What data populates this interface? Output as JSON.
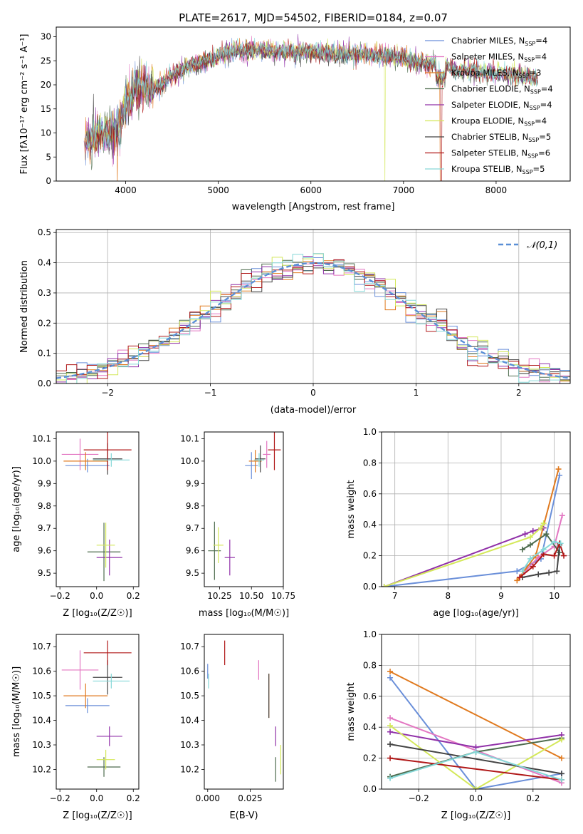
{
  "figure": {
    "title": "PLATE=2617, MJD=54502, FIBERID=0184, z=0.07"
  },
  "colors": {
    "Chabrier MILES": "#6a8fd9",
    "Salpeter MILES": "#e377c2",
    "Kroupa MILES": "#e07a1f",
    "Chabrier ELODIE": "#4d6b4d",
    "Salpeter ELODIE": "#9030a8",
    "Kroupa ELODIE": "#d4e85a",
    "Chabrier STELIB": "#444444",
    "Salpeter STELIB": "#b01818",
    "Kroupa STELIB": "#86d8d8",
    "normal": "#5a8fd6",
    "grid": "#b0b0b0"
  },
  "chart_data": [
    {
      "id": "spectrum",
      "type": "line",
      "xlabel": "wavelength [Angstrom, rest frame]",
      "ylabel": "Flux [fλ10⁻¹⁷ erg cm⁻² s⁻¹ A⁻¹]",
      "xlim": [
        3250,
        8800
      ],
      "ylim": [
        0,
        32
      ],
      "xticks": [
        4000,
        5000,
        6000,
        7000,
        8000
      ],
      "yticks": [
        0,
        5,
        10,
        15,
        20,
        25,
        30
      ],
      "grid": false,
      "legend_position": "top-right",
      "envelope": {
        "x": [
          3550,
          3700,
          3850,
          3950,
          4000,
          4100,
          4200,
          4300,
          4400,
          4500,
          4650,
          4800,
          5000,
          5200,
          5400,
          5600,
          5800,
          6000,
          6200,
          6400,
          6600,
          6800,
          7000,
          7200,
          7400,
          7600,
          7800,
          8000,
          8200,
          8400
        ],
        "y": [
          8.5,
          9.5,
          10,
          12,
          16,
          19,
          19.5,
          19,
          20.5,
          22,
          23.5,
          24.5,
          26,
          27,
          27.2,
          27,
          26.8,
          26.8,
          26.5,
          26.5,
          26.2,
          26,
          25.5,
          24.5,
          24,
          23,
          22.8,
          22.5,
          22,
          21.5
        ]
      },
      "legend": [
        {
          "label": "Chabrier MILES, N",
          "sub": "SSP",
          "val": "=4"
        },
        {
          "label": "Salpeter MILES, N",
          "sub": "SSP",
          "val": "=4"
        },
        {
          "label": "Kroupa MILES, N",
          "sub": "SSP",
          "val": "=3"
        },
        {
          "label": "Chabrier ELODIE, N",
          "sub": "SSP",
          "val": "=4"
        },
        {
          "label": "Salpeter ELODIE, N",
          "sub": "SSP",
          "val": "=4"
        },
        {
          "label": "Kroupa ELODIE, N",
          "sub": "SSP",
          "val": "=4"
        },
        {
          "label": "Chabrier STELIB, N",
          "sub": "SSP",
          "val": "=5"
        },
        {
          "label": "Salpeter STELIB, N",
          "sub": "SSP",
          "val": "=6"
        },
        {
          "label": "Kroupa STELIB, N",
          "sub": "SSP",
          "val": "=5"
        }
      ],
      "series_order": [
        "Chabrier MILES",
        "Salpeter MILES",
        "Kroupa MILES",
        "Chabrier ELODIE",
        "Salpeter ELODIE",
        "Kroupa ELODIE",
        "Chabrier STELIB",
        "Salpeter STELIB",
        "Kroupa STELIB"
      ]
    },
    {
      "id": "residuals",
      "type": "line",
      "xlabel": "(data-model)/error",
      "ylabel": "Normed distribution",
      "xlim": [
        -2.5,
        2.5
      ],
      "ylim": [
        0,
        0.51
      ],
      "xticks": [
        -2,
        -1,
        0,
        1,
        2
      ],
      "yticks": [
        0.0,
        0.1,
        0.2,
        0.3,
        0.4,
        0.5
      ],
      "grid": true,
      "legend_position": "top-right",
      "legend": [
        "𝒩(0,1)"
      ],
      "bin_width": 0.1
    },
    {
      "id": "age-vs-z",
      "type": "scatter",
      "xlabel": "Z [log₁₀(Z/Z☉)]",
      "ylabel": "age  [log₁₀(age/yr)]",
      "xlim": [
        -0.22,
        0.23
      ],
      "ylim": [
        9.44,
        10.13
      ],
      "xticks": [
        -0.2,
        0.0,
        0.2
      ],
      "yticks": [
        9.5,
        9.6,
        9.7,
        9.8,
        9.9,
        10.0,
        10.1
      ],
      "grid": false,
      "points": [
        {
          "s": "Chabrier MILES",
          "x": -0.05,
          "y": 9.98,
          "xerr": 0.12,
          "yerr": 0.03
        },
        {
          "s": "Salpeter MILES",
          "x": -0.09,
          "y": 10.03,
          "xerr": 0.1,
          "yerr": 0.07
        },
        {
          "s": "Kroupa MILES",
          "x": -0.06,
          "y": 10.0,
          "xerr": 0.12,
          "yerr": 0.04
        },
        {
          "s": "Chabrier ELODIE",
          "x": 0.04,
          "y": 9.595,
          "xerr": 0.09,
          "yerr": 0.13
        },
        {
          "s": "Salpeter ELODIE",
          "x": 0.07,
          "y": 9.57,
          "xerr": 0.07,
          "yerr": 0.08
        },
        {
          "s": "Kroupa ELODIE",
          "x": 0.05,
          "y": 9.625,
          "xerr": 0.05,
          "yerr": 0.1
        },
        {
          "s": "Chabrier STELIB",
          "x": 0.06,
          "y": 10.01,
          "xerr": 0.08,
          "yerr": 0.07
        },
        {
          "s": "Salpeter STELIB",
          "x": 0.06,
          "y": 10.05,
          "xerr": 0.13,
          "yerr": 0.09
        },
        {
          "s": "Kroupa STELIB",
          "x": 0.08,
          "y": 10.005,
          "xerr": 0.1,
          "yerr": 0.03
        }
      ]
    },
    {
      "id": "age-vs-mass",
      "type": "scatter",
      "xlabel": "mass [log₁₀(M/M☉)]",
      "ylabel": "",
      "xlim": [
        10.13,
        10.75
      ],
      "ylim": [
        9.44,
        10.13
      ],
      "xticks": [
        10.25,
        10.5,
        10.75
      ],
      "xticklabels": [
        "10.25",
        "10.50",
        "10.75"
      ],
      "yticks": [
        9.5,
        9.6,
        9.7,
        9.8,
        9.9,
        10.0,
        10.1
      ],
      "grid": false,
      "points": [
        {
          "s": "Chabrier MILES",
          "x": 10.5,
          "y": 9.98,
          "xerr": 0.05,
          "yerr": 0.06
        },
        {
          "s": "Salpeter MILES",
          "x": 10.62,
          "y": 10.03,
          "xerr": 0.03,
          "yerr": 0.06
        },
        {
          "s": "Kroupa MILES",
          "x": 10.53,
          "y": 10.0,
          "xerr": 0.05,
          "yerr": 0.05
        },
        {
          "s": "Chabrier ELODIE",
          "x": 10.21,
          "y": 9.6,
          "xerr": 0.05,
          "yerr": 0.13
        },
        {
          "s": "Salpeter ELODIE",
          "x": 10.33,
          "y": 9.57,
          "xerr": 0.04,
          "yerr": 0.08
        },
        {
          "s": "Kroupa ELODIE",
          "x": 10.24,
          "y": 9.625,
          "xerr": 0.04,
          "yerr": 0.08
        },
        {
          "s": "Chabrier STELIB",
          "x": 10.57,
          "y": 10.01,
          "xerr": 0.04,
          "yerr": 0.06
        },
        {
          "s": "Salpeter STELIB",
          "x": 10.68,
          "y": 10.05,
          "xerr": 0.05,
          "yerr": 0.09
        },
        {
          "s": "Kroupa STELIB",
          "x": 10.56,
          "y": 10.005,
          "xerr": 0.04,
          "yerr": 0.03
        }
      ]
    },
    {
      "id": "weight-vs-age",
      "type": "line",
      "xlabel": "age  [log₁₀(age/yr)]",
      "ylabel": "mass weight",
      "xlim": [
        6.75,
        10.3
      ],
      "ylim": [
        0,
        1.0
      ],
      "xticks": [
        7,
        8,
        9,
        10
      ],
      "yticks": [
        0.0,
        0.2,
        0.4,
        0.6,
        0.8,
        1.0
      ],
      "grid": true,
      "series": [
        {
          "name": "Chabrier MILES",
          "x": [
            6.8,
            9.3,
            9.75,
            10.1
          ],
          "y": [
            0.0,
            0.1,
            0.18,
            0.72
          ]
        },
        {
          "name": "Salpeter MILES",
          "x": [
            9.4,
            9.7,
            10.0,
            10.15
          ],
          "y": [
            0.08,
            0.19,
            0.26,
            0.46
          ]
        },
        {
          "name": "Kroupa MILES",
          "x": [
            9.3,
            9.65,
            10.08
          ],
          "y": [
            0.04,
            0.2,
            0.76
          ]
        },
        {
          "name": "Chabrier ELODIE",
          "x": [
            9.4,
            9.55,
            9.85,
            10.1
          ],
          "y": [
            0.24,
            0.27,
            0.34,
            0.22
          ]
        },
        {
          "name": "Salpeter ELODIE",
          "x": [
            6.8,
            9.45,
            9.6,
            9.8
          ],
          "y": [
            0.0,
            0.34,
            0.36,
            0.38
          ]
        },
        {
          "name": "Kroupa ELODIE",
          "x": [
            6.8,
            9.55,
            9.75,
            9.8
          ],
          "y": [
            0.0,
            0.32,
            0.38,
            0.41
          ]
        },
        {
          "name": "Chabrier STELIB",
          "x": [
            9.4,
            9.7,
            9.9,
            10.05,
            10.1
          ],
          "y": [
            0.06,
            0.08,
            0.09,
            0.1,
            0.27
          ]
        },
        {
          "name": "Salpeter STELIB",
          "x": [
            9.35,
            9.6,
            9.8,
            10.0,
            10.1,
            10.18
          ],
          "y": [
            0.06,
            0.13,
            0.21,
            0.2,
            0.28,
            0.2
          ]
        },
        {
          "name": "Kroupa STELIB",
          "x": [
            9.4,
            9.55,
            9.8,
            10.0,
            10.12
          ],
          "y": [
            0.1,
            0.18,
            0.24,
            0.29,
            0.28
          ]
        }
      ]
    },
    {
      "id": "mass-vs-z",
      "type": "scatter",
      "xlabel": "Z [log₁₀(Z/Z☉)]",
      "ylabel": "mass [log₁₀(M/M☉)]",
      "xlim": [
        -0.22,
        0.23
      ],
      "ylim": [
        10.12,
        10.75
      ],
      "xticks": [
        -0.2,
        0.0,
        0.2
      ],
      "yticks": [
        10.2,
        10.3,
        10.4,
        10.5,
        10.6,
        10.7
      ],
      "grid": false,
      "points": [
        {
          "s": "Chabrier MILES",
          "x": -0.05,
          "y": 10.46,
          "xerr": 0.12,
          "yerr": 0.03
        },
        {
          "s": "Salpeter MILES",
          "x": -0.09,
          "y": 10.605,
          "xerr": 0.1,
          "yerr": 0.08
        },
        {
          "s": "Kroupa MILES",
          "x": -0.06,
          "y": 10.5,
          "xerr": 0.12,
          "yerr": 0.05
        },
        {
          "s": "Chabrier ELODIE",
          "x": 0.04,
          "y": 10.21,
          "xerr": 0.09,
          "yerr": 0.04
        },
        {
          "s": "Salpeter ELODIE",
          "x": 0.07,
          "y": 10.335,
          "xerr": 0.07,
          "yerr": 0.04
        },
        {
          "s": "Kroupa ELODIE",
          "x": 0.05,
          "y": 10.24,
          "xerr": 0.05,
          "yerr": 0.04
        },
        {
          "s": "Chabrier STELIB",
          "x": 0.06,
          "y": 10.575,
          "xerr": 0.08,
          "yerr": 0.07
        },
        {
          "s": "Salpeter STELIB",
          "x": 0.06,
          "y": 10.675,
          "xerr": 0.13,
          "yerr": 0.05
        },
        {
          "s": "Kroupa STELIB",
          "x": 0.08,
          "y": 10.56,
          "xerr": 0.1,
          "yerr": 0.03
        }
      ]
    },
    {
      "id": "mass-vs-ebv",
      "type": "scatter",
      "xlabel": "E(B-V)",
      "ylabel": "",
      "xlim": [
        -0.002,
        0.0445
      ],
      "ylim": [
        10.12,
        10.75
      ],
      "xticks": [
        0.0,
        0.025
      ],
      "xticklabels": [
        "0.000",
        "0.025"
      ],
      "yticks": [
        10.2,
        10.3,
        10.4,
        10.5,
        10.6,
        10.7
      ],
      "grid": false,
      "points": [
        {
          "s": "Chabrier MILES",
          "x": 0.0,
          "y": 10.6,
          "yerr": 0.03
        },
        {
          "s": "Salpeter MILES",
          "x": 0.03,
          "y": 10.605,
          "yerr": 0.04
        },
        {
          "s": "Kroupa MILES",
          "x": 0.036,
          "y": 10.5,
          "yerr": 0.09
        },
        {
          "s": "Chabrier ELODIE",
          "x": 0.04,
          "y": 10.2,
          "yerr": 0.05
        },
        {
          "s": "Salpeter ELODIE",
          "x": 0.04,
          "y": 10.335,
          "yerr": 0.04
        },
        {
          "s": "Kroupa ELODIE",
          "x": 0.043,
          "y": 10.24,
          "yerr": 0.06
        },
        {
          "s": "Chabrier STELIB",
          "x": 0.036,
          "y": 10.5,
          "yerr": 0.09
        },
        {
          "s": "Salpeter STELIB",
          "x": 0.01,
          "y": 10.675,
          "yerr": 0.05
        },
        {
          "s": "Kroupa STELIB",
          "x": 0.0005,
          "y": 10.56,
          "yerr": 0.03
        }
      ]
    },
    {
      "id": "weight-vs-z",
      "type": "line",
      "xlabel": "Z [log₁₀(Z/Z☉)]",
      "ylabel": "mass weight",
      "xlim": [
        -0.33,
        0.33
      ],
      "ylim": [
        0,
        1.0
      ],
      "xticks": [
        -0.2,
        0.0,
        0.2
      ],
      "yticks": [
        0.0,
        0.2,
        0.4,
        0.6,
        0.8,
        1.0
      ],
      "grid": true,
      "series": [
        {
          "name": "Chabrier MILES",
          "x": [
            -0.3,
            0.0,
            0.3
          ],
          "y": [
            0.72,
            0.0,
            0.1
          ]
        },
        {
          "name": "Salpeter MILES",
          "x": [
            -0.3,
            0.3
          ],
          "y": [
            0.46,
            0.04
          ]
        },
        {
          "name": "Kroupa MILES",
          "x": [
            -0.3,
            0.3
          ],
          "y": [
            0.76,
            0.2
          ]
        },
        {
          "name": "Chabrier ELODIE",
          "x": [
            -0.3,
            0.0,
            0.3
          ],
          "y": [
            0.08,
            0.24,
            0.33
          ]
        },
        {
          "name": "Salpeter ELODIE",
          "x": [
            -0.3,
            0.0,
            0.3
          ],
          "y": [
            0.37,
            0.27,
            0.35
          ]
        },
        {
          "name": "Kroupa ELODIE",
          "x": [
            -0.3,
            0.0,
            0.3
          ],
          "y": [
            0.41,
            0.0,
            0.32
          ]
        },
        {
          "name": "Chabrier STELIB",
          "x": [
            -0.3,
            0.3
          ],
          "y": [
            0.29,
            0.1
          ]
        },
        {
          "name": "Salpeter STELIB",
          "x": [
            -0.3,
            0.3
          ],
          "y": [
            0.2,
            0.06
          ]
        },
        {
          "name": "Kroupa STELIB",
          "x": [
            -0.3,
            0.0,
            0.3
          ],
          "y": [
            0.07,
            0.24,
            0.06
          ]
        }
      ]
    }
  ]
}
